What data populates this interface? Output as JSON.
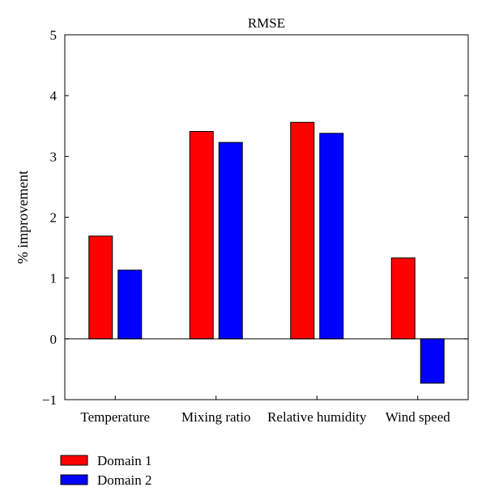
{
  "chart_data": {
    "type": "bar",
    "title": "RMSE",
    "xlabel": "",
    "ylabel": "% improvement",
    "ylim": [
      -1,
      5
    ],
    "yticks": [
      -1,
      0,
      1,
      2,
      3,
      4,
      5
    ],
    "grid": false,
    "legend_position": "bottom-left",
    "categories": [
      "Temperature",
      "Mixing ratio",
      "Relative humidity",
      "Wind speed"
    ],
    "series": [
      {
        "name": "Domain 1",
        "color": "#ff0000",
        "values": [
          1.69,
          3.41,
          3.56,
          1.33
        ]
      },
      {
        "name": "Domain 2",
        "color": "#0000ff",
        "values": [
          1.13,
          3.23,
          3.38,
          -0.73
        ]
      }
    ]
  }
}
